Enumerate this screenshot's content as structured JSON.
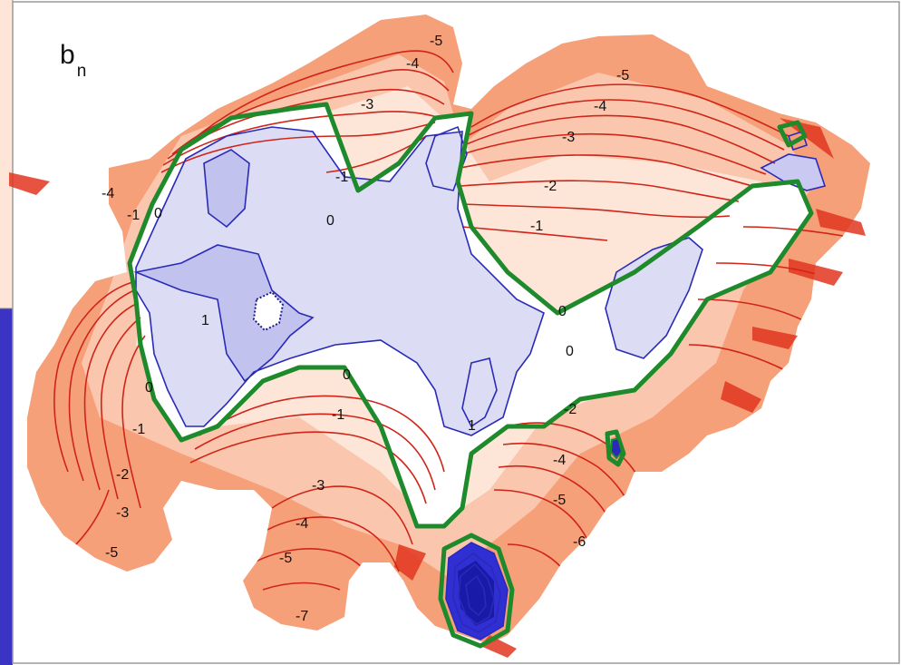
{
  "panel": {
    "label_main": "b",
    "label_sub": "n"
  },
  "colors": {
    "frame_blue": "#3a33c4",
    "ablation_fill": "#f6a07a",
    "ablation_fill_light": "#fde6d8",
    "accumulation_fill": "#dcdcf4",
    "accumulation_fill_dark": "#b5b5ea",
    "negative_contour": "#d02418",
    "positive_contour": "#2a2ab8",
    "zero_contour": "#1f8a2c"
  },
  "contour_labels": [
    {
      "id": "n5-top",
      "text": "-5"
    },
    {
      "id": "n4-top",
      "text": "-4"
    },
    {
      "id": "n3-top",
      "text": "-3"
    },
    {
      "id": "n1-top",
      "text": "-1"
    },
    {
      "id": "z-top",
      "text": "0"
    },
    {
      "id": "n5-right",
      "text": "-5"
    },
    {
      "id": "n4-right",
      "text": "-4"
    },
    {
      "id": "n3-right",
      "text": "-3"
    },
    {
      "id": "n2-right",
      "text": "-2"
    },
    {
      "id": "n1-right",
      "text": "-1"
    },
    {
      "id": "z-right",
      "text": "0"
    },
    {
      "id": "n4-west",
      "text": "-4"
    },
    {
      "id": "n1-west",
      "text": "-1"
    },
    {
      "id": "z-west",
      "text": "0"
    },
    {
      "id": "p1-west",
      "text": "1"
    },
    {
      "id": "z-sw",
      "text": "0"
    },
    {
      "id": "n1-sw",
      "text": "-1"
    },
    {
      "id": "n2-sw",
      "text": "-2"
    },
    {
      "id": "n3-sw",
      "text": "-3"
    },
    {
      "id": "n5-sw",
      "text": "-5"
    },
    {
      "id": "z-mid",
      "text": "0"
    },
    {
      "id": "n1-mid",
      "text": "-1"
    },
    {
      "id": "n3-south",
      "text": "-3"
    },
    {
      "id": "n4-south",
      "text": "-4"
    },
    {
      "id": "n5-south",
      "text": "-5"
    },
    {
      "id": "n7-south",
      "text": "-7"
    },
    {
      "id": "p1-center",
      "text": "1"
    },
    {
      "id": "z-se",
      "text": "0"
    },
    {
      "id": "n2-se",
      "text": "-2"
    },
    {
      "id": "n4-se",
      "text": "-4"
    },
    {
      "id": "n5-se",
      "text": "-5"
    },
    {
      "id": "n6-se",
      "text": "-6"
    }
  ]
}
